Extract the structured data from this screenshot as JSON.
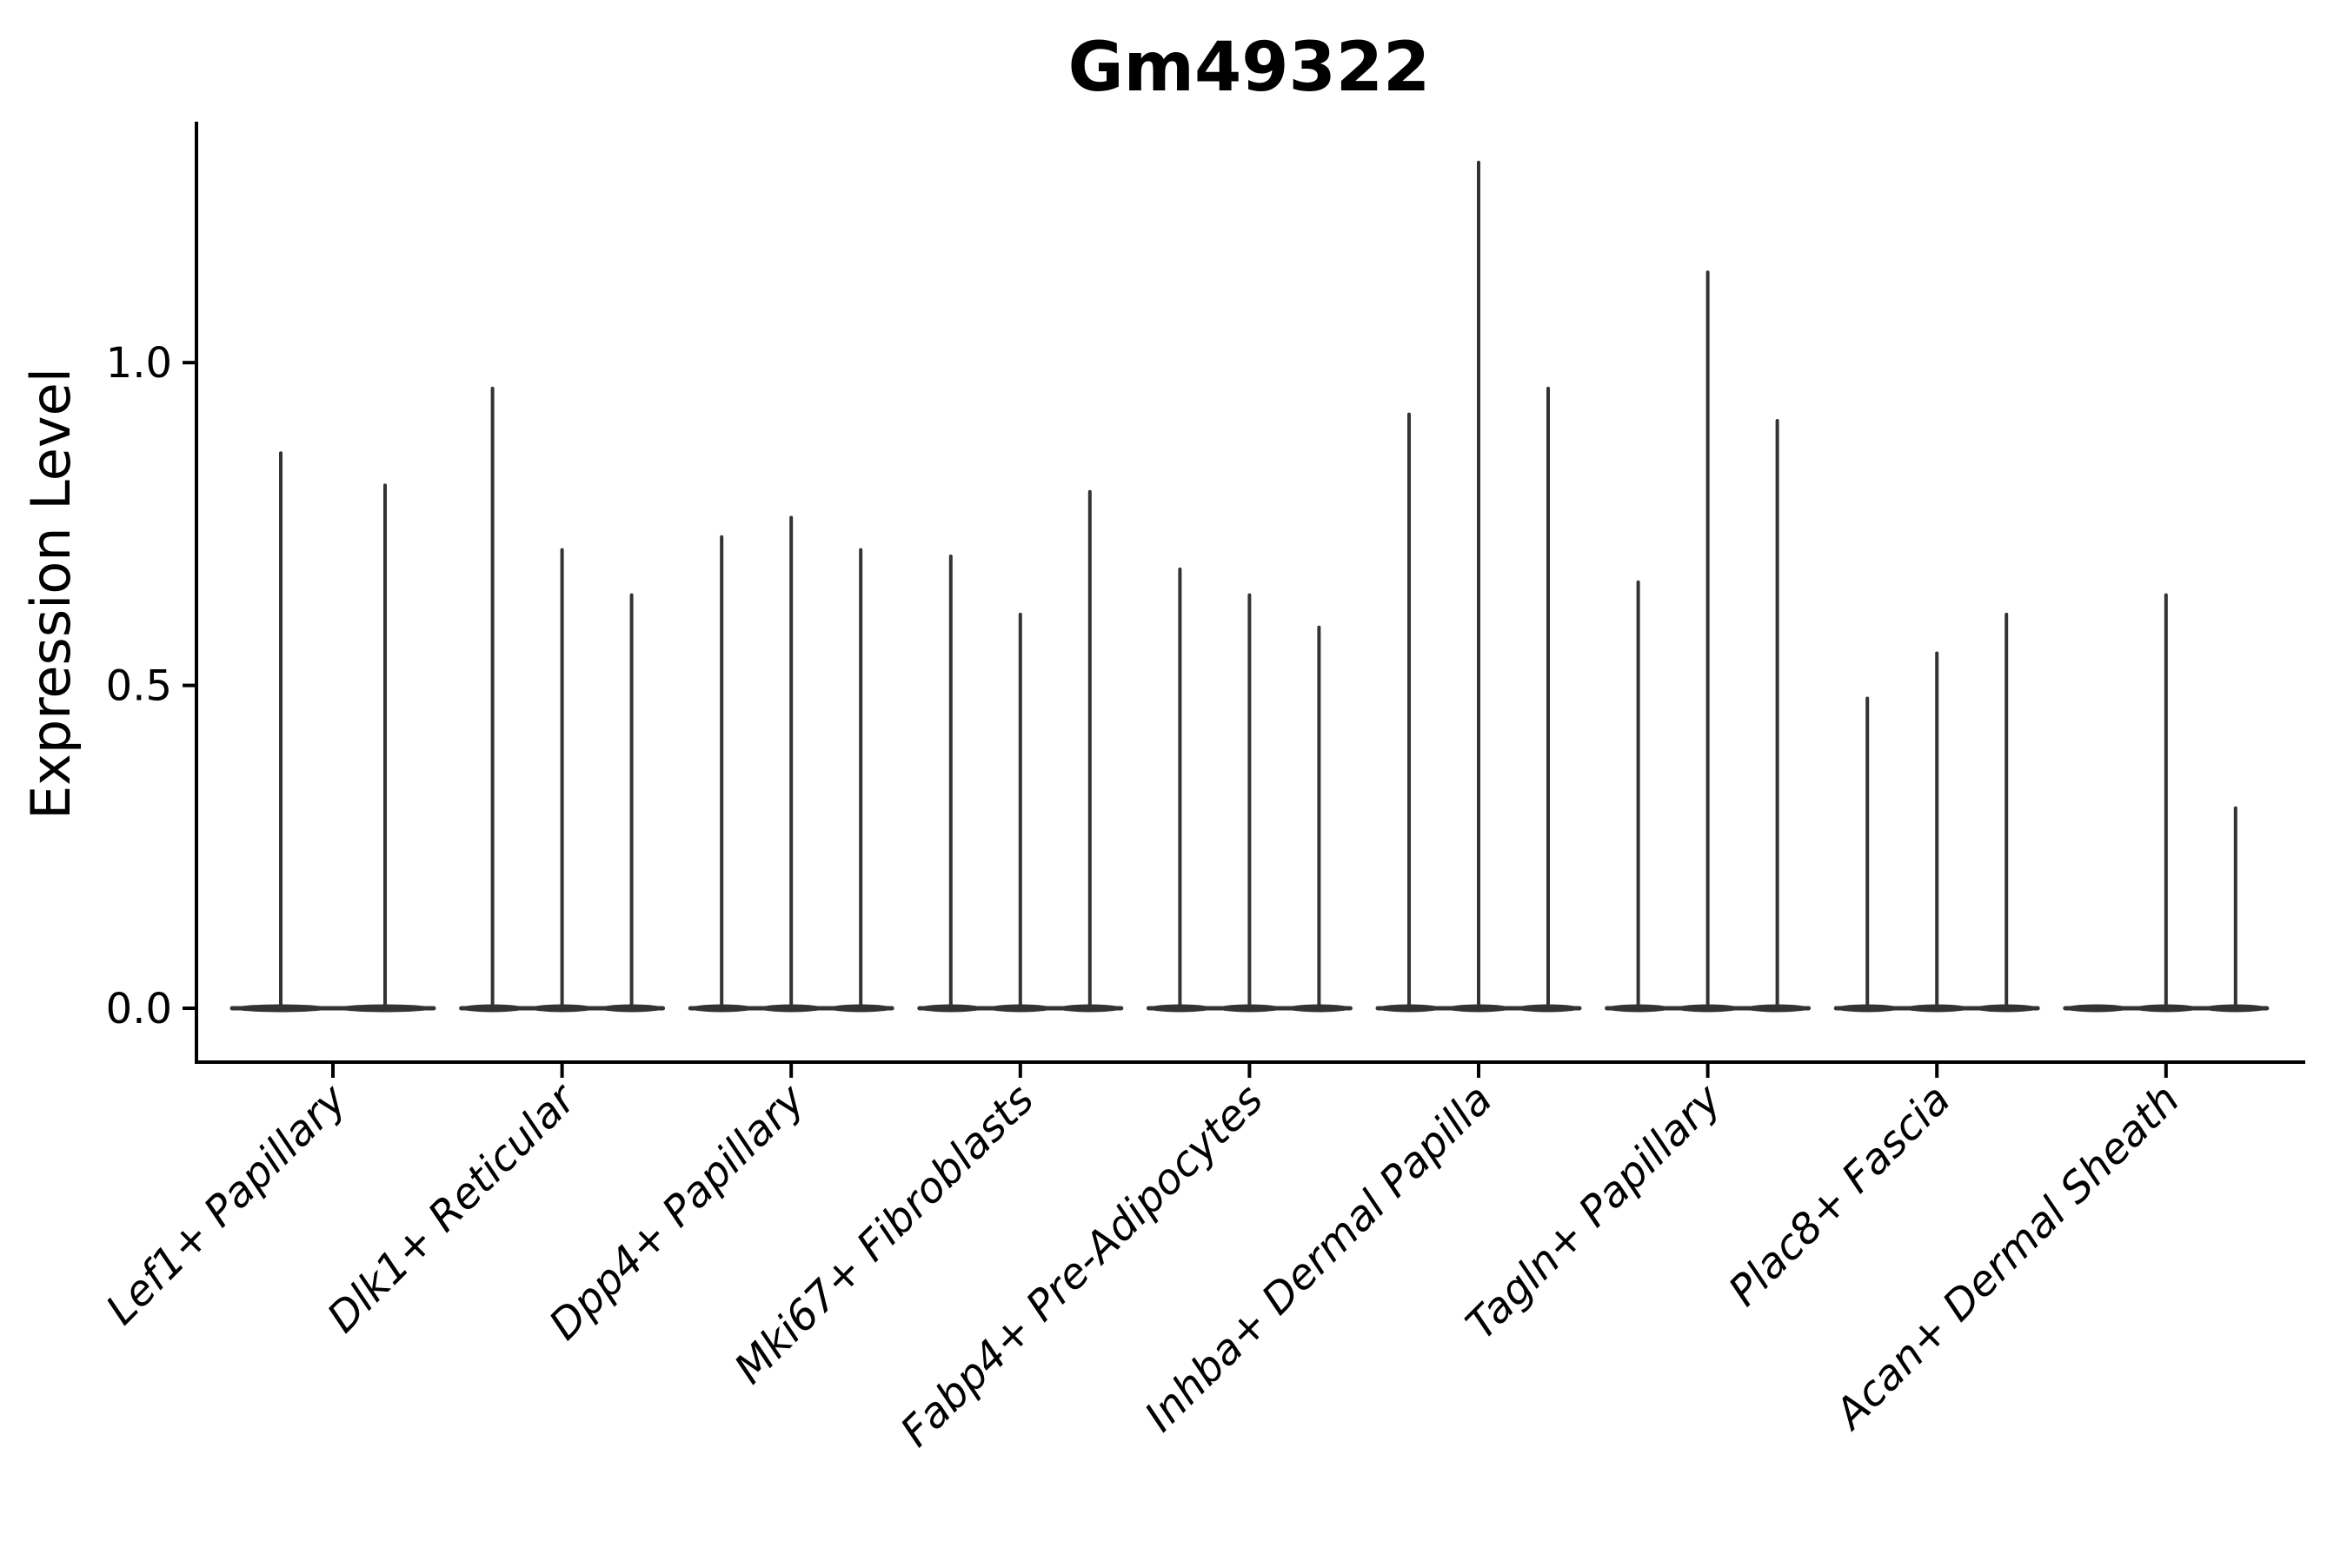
{
  "chart_data": {
    "type": "violin",
    "title": "Gm49322",
    "ylabel": "Expression Level",
    "xlabel": "",
    "yticks": [
      0.0,
      0.5,
      1.0
    ],
    "ytick_labels": [
      "0.0",
      "0.5",
      "1.0"
    ],
    "ylim": [
      -0.07,
      1.37
    ],
    "grid": false,
    "legend": "none",
    "violin_color": "#333333",
    "axis_color": "#000000",
    "background_color": "#ffffff",
    "note": "Each category shows thin violins of zero-inflated expression: a flat body at 0 with a thin spike up to the maximum expression value.",
    "categories": [
      "Lef1+ Papillary",
      "Dlk1+ Reticular",
      "Dpp4+ Papillary",
      "Mki67+ Fibroblasts",
      "Fabp4+ Pre-Adipocytes",
      "Inhba+ Dermal Papilla",
      "Tagln+ Papillary",
      "Plac8+ Fascia",
      "Acan+ Dermal Sheath"
    ],
    "groups": [
      {
        "label": "Lef1+ Papillary",
        "violin_max": [
          0.86,
          0.81
        ]
      },
      {
        "label": "Dlk1+ Reticular",
        "violin_max": [
          0.96,
          0.71,
          0.64
        ]
      },
      {
        "label": "Dpp4+ Papillary",
        "violin_max": [
          0.73,
          0.76,
          0.71
        ]
      },
      {
        "label": "Mki67+ Fibroblasts",
        "violin_max": [
          0.7,
          0.61,
          0.8
        ]
      },
      {
        "label": "Fabp4+ Pre-Adipocytes",
        "violin_max": [
          0.68,
          0.64,
          0.59
        ]
      },
      {
        "label": "Inhba+ Dermal Papilla",
        "violin_max": [
          0.92,
          1.31,
          0.96
        ]
      },
      {
        "label": "Tagln+ Papillary",
        "violin_max": [
          0.66,
          1.14,
          0.91
        ]
      },
      {
        "label": "Plac8+ Fascia",
        "violin_max": [
          0.48,
          0.55,
          0.61
        ]
      },
      {
        "label": "Acan+ Dermal Sheath",
        "violin_max": [
          0.0,
          0.64,
          0.31
        ]
      }
    ]
  }
}
